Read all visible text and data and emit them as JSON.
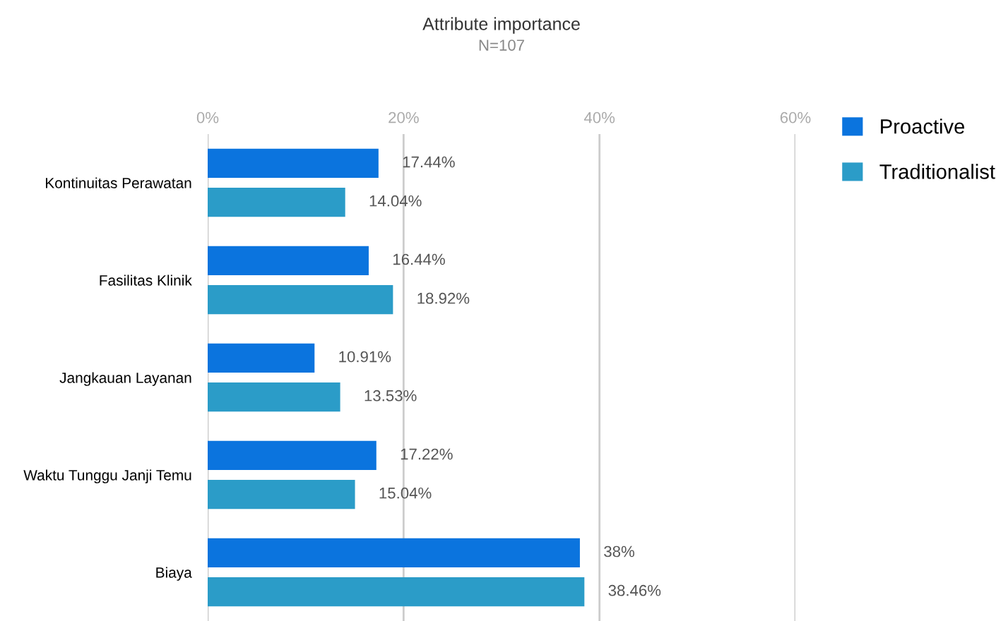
{
  "chart_data": {
    "type": "bar",
    "orientation": "horizontal",
    "title": "Attribute importance",
    "subtitle": "N=107",
    "categories": [
      "Kontinuitas Perawatan",
      "Fasilitas Klinik",
      "Jangkauan Layanan",
      "Waktu Tunggu Janji Temu",
      "Biaya"
    ],
    "series": [
      {
        "name": "Proactive",
        "color": "#0b74de",
        "values": [
          17.44,
          16.44,
          10.91,
          17.22,
          38
        ],
        "value_labels": [
          "17.44%",
          "16.44%",
          "10.91%",
          "17.22%",
          "38%"
        ]
      },
      {
        "name": "Traditionalist",
        "color": "#2b9cc8",
        "values": [
          14.04,
          18.92,
          13.53,
          15.04,
          38.46
        ],
        "value_labels": [
          "14.04%",
          "18.92%",
          "13.53%",
          "15.04%",
          "38.46%"
        ]
      }
    ],
    "xlim": [
      0,
      60
    ],
    "xticks": [
      {
        "value": 0,
        "label": "0%"
      },
      {
        "value": 20,
        "label": "20%"
      },
      {
        "value": 40,
        "label": "40%"
      },
      {
        "value": 60,
        "label": "60%"
      }
    ],
    "grid": "x",
    "legend": "top right"
  }
}
